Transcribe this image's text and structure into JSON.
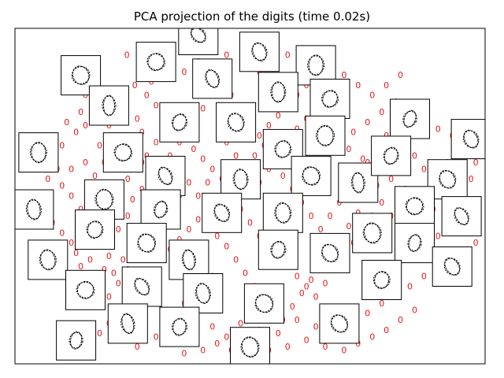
{
  "chart_data": {
    "type": "scatter",
    "title": "PCA projection of the digits (time 0.02s)",
    "xlabel": "",
    "ylabel": "",
    "axes_ticks": false,
    "grid": false,
    "xlim": [
      0,
      1
    ],
    "ylim": [
      0,
      1
    ],
    "point_label": "0",
    "point_color": "#e41a1c",
    "thumbnail_digit": "0",
    "thumbnail_border_color": "#000000",
    "points": [
      [
        0.355,
        0.98
      ],
      [
        0.238,
        0.92
      ],
      [
        0.315,
        0.92
      ],
      [
        0.39,
        0.9
      ],
      [
        0.45,
        0.92
      ],
      [
        0.52,
        0.87
      ],
      [
        0.55,
        0.89
      ],
      [
        0.36,
        0.87
      ],
      [
        0.33,
        0.85
      ],
      [
        0.29,
        0.84
      ],
      [
        0.255,
        0.83
      ],
      [
        0.225,
        0.8
      ],
      [
        0.21,
        0.78
      ],
      [
        0.28,
        0.8
      ],
      [
        0.3,
        0.77
      ],
      [
        0.32,
        0.75
      ],
      [
        0.17,
        0.78
      ],
      [
        0.15,
        0.8
      ],
      [
        0.14,
        0.75
      ],
      [
        0.15,
        0.71
      ],
      [
        0.13,
        0.69
      ],
      [
        0.11,
        0.72
      ],
      [
        0.19,
        0.74
      ],
      [
        0.2,
        0.71
      ],
      [
        0.23,
        0.68
      ],
      [
        0.26,
        0.73
      ],
      [
        0.27,
        0.69
      ],
      [
        0.18,
        0.65
      ],
      [
        0.1,
        0.65
      ],
      [
        0.08,
        0.62
      ],
      [
        0.07,
        0.66
      ],
      [
        0.09,
        0.58
      ],
      [
        0.07,
        0.55
      ],
      [
        0.04,
        0.5
      ],
      [
        0.06,
        0.46
      ],
      [
        0.08,
        0.42
      ],
      [
        0.1,
        0.39
      ],
      [
        0.12,
        0.36
      ],
      [
        0.14,
        0.38
      ],
      [
        0.18,
        0.35
      ],
      [
        0.2,
        0.32
      ],
      [
        0.22,
        0.4
      ],
      [
        0.24,
        0.44
      ],
      [
        0.25,
        0.49
      ],
      [
        0.27,
        0.52
      ],
      [
        0.29,
        0.55
      ],
      [
        0.31,
        0.59
      ],
      [
        0.33,
        0.62
      ],
      [
        0.35,
        0.66
      ],
      [
        0.38,
        0.64
      ],
      [
        0.4,
        0.61
      ],
      [
        0.42,
        0.58
      ],
      [
        0.44,
        0.55
      ],
      [
        0.46,
        0.52
      ],
      [
        0.43,
        0.49
      ],
      [
        0.41,
        0.46
      ],
      [
        0.39,
        0.43
      ],
      [
        0.37,
        0.4
      ],
      [
        0.35,
        0.37
      ],
      [
        0.33,
        0.34
      ],
      [
        0.31,
        0.31
      ],
      [
        0.3,
        0.27
      ],
      [
        0.28,
        0.24
      ],
      [
        0.26,
        0.21
      ],
      [
        0.24,
        0.18
      ],
      [
        0.22,
        0.15
      ],
      [
        0.2,
        0.12
      ],
      [
        0.18,
        0.09
      ],
      [
        0.22,
        0.07
      ],
      [
        0.26,
        0.05
      ],
      [
        0.3,
        0.08
      ],
      [
        0.34,
        0.06
      ],
      [
        0.38,
        0.09
      ],
      [
        0.42,
        0.11
      ],
      [
        0.45,
        0.08
      ],
      [
        0.48,
        0.12
      ],
      [
        0.52,
        0.1
      ],
      [
        0.56,
        0.09
      ],
      [
        0.6,
        0.13
      ],
      [
        0.64,
        0.11
      ],
      [
        0.68,
        0.08
      ],
      [
        0.72,
        0.12
      ],
      [
        0.75,
        0.15
      ],
      [
        0.78,
        0.18
      ],
      [
        0.81,
        0.2
      ],
      [
        0.84,
        0.23
      ],
      [
        0.87,
        0.26
      ],
      [
        0.9,
        0.29
      ],
      [
        0.93,
        0.31
      ],
      [
        0.96,
        0.33
      ],
      [
        0.98,
        0.36
      ],
      [
        0.95,
        0.4
      ],
      [
        0.92,
        0.43
      ],
      [
        0.89,
        0.46
      ],
      [
        0.86,
        0.49
      ],
      [
        0.83,
        0.52
      ],
      [
        0.8,
        0.55
      ],
      [
        0.77,
        0.58
      ],
      [
        0.74,
        0.61
      ],
      [
        0.71,
        0.64
      ],
      [
        0.68,
        0.67
      ],
      [
        0.65,
        0.7
      ],
      [
        0.62,
        0.73
      ],
      [
        0.6,
        0.7
      ],
      [
        0.58,
        0.66
      ],
      [
        0.56,
        0.62
      ],
      [
        0.54,
        0.58
      ],
      [
        0.52,
        0.54
      ],
      [
        0.5,
        0.5
      ],
      [
        0.48,
        0.46
      ],
      [
        0.5,
        0.42
      ],
      [
        0.52,
        0.38
      ],
      [
        0.54,
        0.35
      ],
      [
        0.56,
        0.32
      ],
      [
        0.58,
        0.29
      ],
      [
        0.6,
        0.26
      ],
      [
        0.62,
        0.23
      ],
      [
        0.64,
        0.2
      ],
      [
        0.66,
        0.24
      ],
      [
        0.68,
        0.28
      ],
      [
        0.7,
        0.32
      ],
      [
        0.72,
        0.36
      ],
      [
        0.74,
        0.4
      ],
      [
        0.76,
        0.44
      ],
      [
        0.78,
        0.48
      ],
      [
        0.8,
        0.44
      ],
      [
        0.82,
        0.4
      ],
      [
        0.84,
        0.36
      ],
      [
        0.86,
        0.32
      ],
      [
        0.88,
        0.35
      ],
      [
        0.9,
        0.38
      ],
      [
        0.92,
        0.6
      ],
      [
        0.95,
        0.63
      ],
      [
        0.98,
        0.6
      ],
      [
        0.96,
        0.66
      ],
      [
        0.93,
        0.68
      ],
      [
        0.9,
        0.7
      ],
      [
        0.87,
        0.72
      ],
      [
        0.84,
        0.75
      ],
      [
        0.81,
        0.78
      ],
      [
        0.78,
        0.75
      ],
      [
        0.75,
        0.72
      ],
      [
        0.72,
        0.69
      ],
      [
        0.7,
        0.74
      ],
      [
        0.68,
        0.78
      ],
      [
        0.66,
        0.82
      ],
      [
        0.64,
        0.86
      ],
      [
        0.62,
        0.83
      ],
      [
        0.6,
        0.8
      ],
      [
        0.58,
        0.77
      ],
      [
        0.56,
        0.74
      ],
      [
        0.54,
        0.71
      ],
      [
        0.52,
        0.68
      ],
      [
        0.5,
        0.72
      ],
      [
        0.48,
        0.76
      ],
      [
        0.46,
        0.8
      ],
      [
        0.44,
        0.84
      ],
      [
        0.42,
        0.8
      ],
      [
        0.4,
        0.76
      ],
      [
        0.38,
        0.72
      ],
      [
        0.36,
        0.68
      ],
      [
        0.34,
        0.72
      ],
      [
        0.32,
        0.7
      ],
      [
        0.3,
        0.66
      ],
      [
        0.28,
        0.62
      ],
      [
        0.26,
        0.58
      ],
      [
        0.24,
        0.55
      ],
      [
        0.22,
        0.52
      ],
      [
        0.2,
        0.49
      ],
      [
        0.18,
        0.46
      ],
      [
        0.16,
        0.43
      ],
      [
        0.14,
        0.46
      ],
      [
        0.12,
        0.5
      ],
      [
        0.1,
        0.53
      ],
      [
        0.12,
        0.58
      ],
      [
        0.15,
        0.6
      ],
      [
        0.17,
        0.56
      ],
      [
        0.19,
        0.6
      ],
      [
        0.21,
        0.63
      ],
      [
        0.23,
        0.6
      ],
      [
        0.25,
        0.64
      ],
      [
        0.27,
        0.6
      ],
      [
        0.29,
        0.45
      ],
      [
        0.31,
        0.42
      ],
      [
        0.33,
        0.46
      ],
      [
        0.35,
        0.5
      ],
      [
        0.37,
        0.54
      ],
      [
        0.39,
        0.5
      ],
      [
        0.41,
        0.54
      ],
      [
        0.43,
        0.38
      ],
      [
        0.45,
        0.35
      ],
      [
        0.47,
        0.31
      ],
      [
        0.49,
        0.27
      ],
      [
        0.51,
        0.23
      ],
      [
        0.53,
        0.19
      ],
      [
        0.55,
        0.16
      ],
      [
        0.57,
        0.13
      ],
      [
        0.59,
        0.17
      ],
      [
        0.61,
        0.21
      ],
      [
        0.63,
        0.25
      ],
      [
        0.65,
        0.29
      ],
      [
        0.67,
        0.33
      ],
      [
        0.69,
        0.37
      ],
      [
        0.71,
        0.41
      ],
      [
        0.73,
        0.45
      ],
      [
        0.75,
        0.49
      ],
      [
        0.77,
        0.53
      ],
      [
        0.79,
        0.57
      ],
      [
        0.81,
        0.61
      ],
      [
        0.83,
        0.65
      ],
      [
        0.85,
        0.62
      ],
      [
        0.87,
        0.58
      ],
      [
        0.89,
        0.54
      ],
      [
        0.91,
        0.5
      ],
      [
        0.93,
        0.47
      ],
      [
        0.95,
        0.51
      ],
      [
        0.97,
        0.55
      ],
      [
        0.85,
        0.16
      ],
      [
        0.82,
        0.13
      ],
      [
        0.79,
        0.1
      ],
      [
        0.76,
        0.08
      ],
      [
        0.73,
        0.06
      ],
      [
        0.7,
        0.04
      ],
      [
        0.66,
        0.05
      ],
      [
        0.62,
        0.07
      ],
      [
        0.58,
        0.05
      ],
      [
        0.54,
        0.04
      ],
      [
        0.5,
        0.06
      ],
      [
        0.46,
        0.04
      ],
      [
        0.43,
        0.06
      ],
      [
        0.4,
        0.04
      ],
      [
        0.36,
        0.03
      ],
      [
        0.33,
        0.14
      ],
      [
        0.36,
        0.18
      ],
      [
        0.39,
        0.22
      ],
      [
        0.42,
        0.26
      ],
      [
        0.4,
        0.3
      ],
      [
        0.38,
        0.34
      ],
      [
        0.14,
        0.29
      ],
      [
        0.16,
        0.26
      ],
      [
        0.18,
        0.23
      ],
      [
        0.2,
        0.2
      ],
      [
        0.22,
        0.24
      ],
      [
        0.24,
        0.28
      ],
      [
        0.26,
        0.32
      ],
      [
        0.12,
        0.25
      ],
      [
        0.1,
        0.28
      ],
      [
        0.13,
        0.33
      ],
      [
        0.16,
        0.31
      ],
      [
        0.19,
        0.28
      ],
      [
        0.21,
        0.27
      ],
      [
        0.23,
        0.31
      ],
      [
        0.45,
        0.66
      ],
      [
        0.47,
        0.62
      ],
      [
        0.49,
        0.58
      ],
      [
        0.51,
        0.62
      ],
      [
        0.53,
        0.65
      ],
      [
        0.55,
        0.6
      ],
      [
        0.57,
        0.56
      ],
      [
        0.59,
        0.52
      ],
      [
        0.61,
        0.48
      ],
      [
        0.63,
        0.44
      ],
      [
        0.65,
        0.4
      ],
      [
        0.67,
        0.44
      ],
      [
        0.69,
        0.48
      ],
      [
        0.71,
        0.52
      ],
      [
        0.73,
        0.56
      ],
      [
        0.75,
        0.6
      ],
      [
        0.77,
        0.64
      ],
      [
        0.79,
        0.68
      ],
      [
        0.81,
        0.71
      ],
      [
        0.7,
        0.86
      ],
      [
        0.73,
        0.83
      ],
      [
        0.76,
        0.8
      ],
      [
        0.79,
        0.83
      ],
      [
        0.82,
        0.86
      ],
      [
        0.67,
        0.89
      ],
      [
        0.64,
        0.92
      ],
      [
        0.61,
        0.89
      ],
      [
        0.58,
        0.92
      ]
    ],
    "thumbnails": [
      [
        0.39,
        0.98
      ],
      [
        0.52,
        0.93
      ],
      [
        0.64,
        0.89
      ],
      [
        0.3,
        0.9
      ],
      [
        0.42,
        0.85
      ],
      [
        0.56,
        0.81
      ],
      [
        0.67,
        0.79
      ],
      [
        0.14,
        0.86
      ],
      [
        0.2,
        0.77
      ],
      [
        0.35,
        0.72
      ],
      [
        0.47,
        0.72
      ],
      [
        0.66,
        0.68
      ],
      [
        0.84,
        0.73
      ],
      [
        0.97,
        0.67
      ],
      [
        0.05,
        0.63
      ],
      [
        0.23,
        0.63
      ],
      [
        0.32,
        0.56
      ],
      [
        0.48,
        0.55
      ],
      [
        0.57,
        0.64
      ],
      [
        0.63,
        0.56
      ],
      [
        0.73,
        0.54
      ],
      [
        0.8,
        0.62
      ],
      [
        0.92,
        0.55
      ],
      [
        0.19,
        0.49
      ],
      [
        0.31,
        0.46
      ],
      [
        0.44,
        0.45
      ],
      [
        0.57,
        0.45
      ],
      [
        0.85,
        0.47
      ],
      [
        0.95,
        0.44
      ],
      [
        0.04,
        0.46
      ],
      [
        0.17,
        0.4
      ],
      [
        0.28,
        0.36
      ],
      [
        0.37,
        0.31
      ],
      [
        0.56,
        0.34
      ],
      [
        0.67,
        0.33
      ],
      [
        0.76,
        0.39
      ],
      [
        0.85,
        0.36
      ],
      [
        0.93,
        0.29
      ],
      [
        0.07,
        0.31
      ],
      [
        0.15,
        0.22
      ],
      [
        0.27,
        0.23
      ],
      [
        0.4,
        0.21
      ],
      [
        0.78,
        0.25
      ],
      [
        0.53,
        0.18
      ],
      [
        0.24,
        0.12
      ],
      [
        0.35,
        0.11
      ],
      [
        0.69,
        0.12
      ],
      [
        0.5,
        0.05
      ],
      [
        0.13,
        0.07
      ]
    ]
  }
}
